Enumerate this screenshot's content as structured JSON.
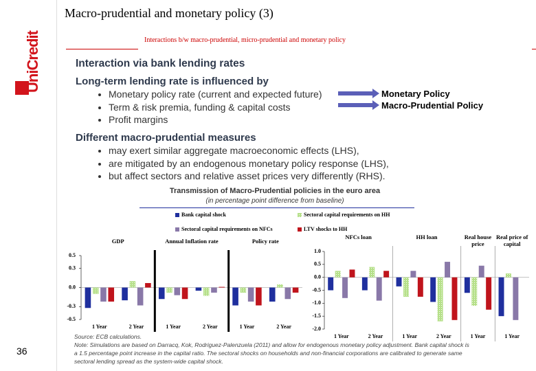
{
  "header": {
    "logo": "UniCredit",
    "title": "Macro-prudential and monetary policy (3)",
    "subtitle": "Interactions b/w macro-prudential, micro-prudential and monetary policy"
  },
  "page_number": "36",
  "sections": [
    {
      "heading": "Interaction via bank lending rates",
      "subheading": "Long-term lending rate is influenced by",
      "bullets": [
        "Monetary policy rate (current and expected future)",
        "Term & risk premia, funding & capital costs",
        "Profit margins"
      ]
    },
    {
      "subheading": "Different macro-prudential measures",
      "bullets": [
        "may exert similar aggregate macroeconomic effects (LHS),",
        "are mitigated by an endogenous monetary policy response (LHS),",
        "but affect sectors and relative asset prices very differently (RHS)."
      ]
    }
  ],
  "arrow_labels": [
    "Monetary Policy",
    "Macro-Prudential Policy"
  ],
  "figure": {
    "title": "Transmission of Macro-Prudential policies in the euro area",
    "subtitle": "(in percentage point difference from baseline)",
    "legend": [
      {
        "name": "Bank capital shock",
        "color": "#1f2f9e"
      },
      {
        "name": "Sectoral capital requirements on HH",
        "color": "#b6e08a"
      },
      {
        "name": "Sectoral capital requirements on NFCs",
        "color": "#8978a8"
      },
      {
        "name": "LTV shocks to HH",
        "color": "#c0141c"
      }
    ],
    "source": "Source: ECB calculations.",
    "note": "Note: Simulations are based on Darracq, Kok, Rodriguez-Palenzuela (2011) and allow for endogenous monetary policy adjustment. Bank capital shock is a 1.5 percentage point increase in the capital ratio. The sectoral shocks on households and non-financial corporations are calibrated to generate same sectoral lending spread as the system-wide capital shock."
  },
  "chart_data": [
    {
      "type": "bar",
      "groups": [
        {
          "label": "GDP",
          "categories": [
            "1 Year",
            "2 Year"
          ]
        },
        {
          "label": "Annual Inflation rate",
          "categories": [
            "1 Year",
            "2 Year"
          ]
        },
        {
          "label": "Policy rate",
          "categories": [
            "1 Year",
            "2 Year"
          ]
        }
      ],
      "series": [
        {
          "values": [
            -0.32,
            -0.2,
            -0.18,
            -0.05,
            -0.28,
            -0.22
          ]
        },
        {
          "values": [
            -0.1,
            0.1,
            -0.08,
            -0.13,
            -0.08,
            0.05
          ]
        },
        {
          "values": [
            -0.22,
            -0.28,
            -0.12,
            -0.08,
            -0.22,
            -0.18
          ]
        },
        {
          "values": [
            -0.22,
            0.07,
            -0.18,
            0.01,
            -0.28,
            -0.08
          ]
        }
      ],
      "ylim": [
        -0.5,
        0.5
      ],
      "yticks": [
        0.5,
        0.3,
        {
          "value": 0,
          "label": "0.0"
        },
        -0.3,
        -0.5
      ]
    },
    {
      "type": "bar",
      "groups": [
        {
          "label": "NFCs loan",
          "categories": [
            "1 Year",
            "2 Year"
          ]
        },
        {
          "label": "HH loan",
          "categories": [
            "1 Year",
            "2 Year"
          ]
        },
        {
          "label": "Real house price",
          "categories": [
            "1 Year"
          ]
        },
        {
          "label": "Real price of capital",
          "categories": [
            "1 Year"
          ]
        }
      ],
      "series": [
        {
          "values": [
            -0.5,
            -0.5,
            -0.35,
            -0.95,
            -0.6,
            -1.5
          ]
        },
        {
          "values": [
            0.25,
            0.4,
            -0.75,
            -1.7,
            -1.1,
            0.15
          ]
        },
        {
          "values": [
            -0.8,
            -0.9,
            0.25,
            0.6,
            0.45,
            -1.65
          ]
        },
        {
          "values": [
            0.3,
            0.25,
            -0.75,
            -1.65,
            -1.25,
            null
          ]
        }
      ],
      "ylim": [
        -2,
        1
      ],
      "yticks": [
        {
          "value": 1,
          "label": "1.0"
        },
        0.5,
        {
          "value": 0,
          "label": "0.0"
        },
        -0.5,
        {
          "value": -1,
          "label": "-1.0"
        },
        -1.5,
        {
          "value": -2,
          "label": "-2.0"
        }
      ]
    }
  ]
}
